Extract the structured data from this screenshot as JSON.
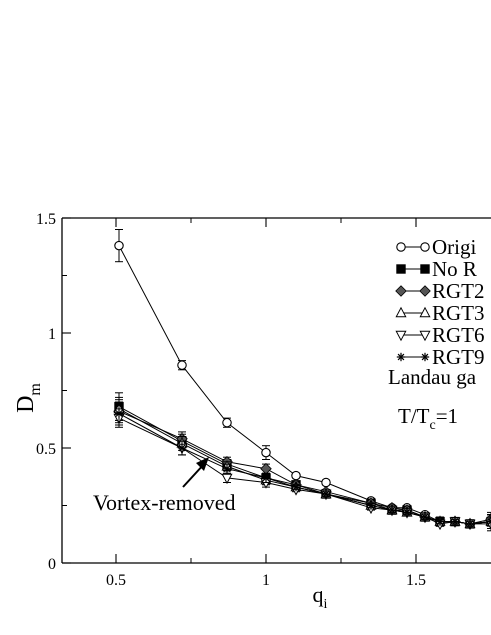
{
  "chart_data": {
    "type": "line",
    "xlabel": "q",
    "xlabel_sub": "i",
    "ylabel": "D",
    "ylabel_sub": "m",
    "xlim": [
      0.32,
      1.75
    ],
    "ylim": [
      0,
      1.5
    ],
    "xticks": [
      {
        "value": 0.5,
        "label": "0.5"
      },
      {
        "value": 1.0,
        "label": "1"
      },
      {
        "value": 1.5,
        "label": "1.5"
      }
    ],
    "yticks": [
      {
        "value": 0,
        "label": "0"
      },
      {
        "value": 0.5,
        "label": "0.5"
      },
      {
        "value": 1.0,
        "label": "1"
      },
      {
        "value": 1.5,
        "label": "1.5"
      }
    ],
    "legend_placement": "top-right",
    "series": [
      {
        "name": "Origi",
        "marker": "circle-open",
        "color": "#000000",
        "x": [
          0.51,
          0.72,
          0.87,
          1.0,
          1.1,
          1.2,
          1.35,
          1.42,
          1.47,
          1.53,
          1.58,
          1.63,
          1.68,
          1.75
        ],
        "y": [
          1.38,
          0.86,
          0.61,
          0.48,
          0.38,
          0.35,
          0.27,
          0.24,
          0.24,
          0.21,
          0.18,
          0.18,
          0.17,
          0.18
        ],
        "err": [
          0.07,
          0.02,
          0.02,
          0.03,
          0.01,
          0.01,
          0.01,
          0.01,
          0.01,
          0.01,
          0.01,
          0.01,
          0.01,
          0.03
        ]
      },
      {
        "name": "No R",
        "marker": "square-filled",
        "color": "#000000",
        "x": [
          0.51,
          0.72,
          0.87,
          1.0,
          1.1,
          1.2,
          1.35,
          1.42,
          1.47,
          1.53,
          1.58,
          1.63,
          1.68,
          1.75
        ],
        "y": [
          0.68,
          0.53,
          0.43,
          0.37,
          0.34,
          0.3,
          0.26,
          0.23,
          0.23,
          0.2,
          0.18,
          0.18,
          0.17,
          0.18
        ],
        "err": [
          0.06,
          0.03,
          0.02,
          0.02,
          0.01,
          0.01,
          0.01,
          0.01,
          0.01,
          0.01,
          0.02,
          0.01,
          0.01,
          0.03
        ]
      },
      {
        "name": "RGT2",
        "marker": "diamond-filled",
        "color": "#555555",
        "x": [
          0.51,
          0.72,
          0.87,
          1.0,
          1.1,
          1.2,
          1.35,
          1.42,
          1.47,
          1.53,
          1.58,
          1.63,
          1.68,
          1.75
        ],
        "y": [
          0.66,
          0.54,
          0.44,
          0.41,
          0.34,
          0.31,
          0.26,
          0.24,
          0.23,
          0.2,
          0.18,
          0.18,
          0.17,
          0.19
        ],
        "err": [
          0.05,
          0.03,
          0.02,
          0.02,
          0.01,
          0.01,
          0.01,
          0.01,
          0.01,
          0.01,
          0.01,
          0.01,
          0.01,
          0.03
        ]
      },
      {
        "name": "RGT3",
        "marker": "triangle-up-open",
        "color": "#000000",
        "x": [
          0.51,
          0.72,
          0.87,
          1.0,
          1.1,
          1.2,
          1.35,
          1.42,
          1.47,
          1.53,
          1.58,
          1.63,
          1.68,
          1.75
        ],
        "y": [
          0.67,
          0.52,
          0.42,
          0.36,
          0.33,
          0.3,
          0.25,
          0.23,
          0.22,
          0.2,
          0.18,
          0.18,
          0.17,
          0.18
        ],
        "err": [
          0.05,
          0.03,
          0.02,
          0.02,
          0.01,
          0.01,
          0.01,
          0.01,
          0.01,
          0.01,
          0.01,
          0.01,
          0.01,
          0.03
        ]
      },
      {
        "name": "RGT6",
        "marker": "triangle-down-open",
        "color": "#000000",
        "x": [
          0.51,
          0.72,
          0.87,
          1.0,
          1.1,
          1.2,
          1.35,
          1.42,
          1.47,
          1.53,
          1.58,
          1.63,
          1.68,
          1.75
        ],
        "y": [
          0.63,
          0.5,
          0.37,
          0.35,
          0.32,
          0.3,
          0.24,
          0.23,
          0.22,
          0.2,
          0.17,
          0.18,
          0.17,
          0.17
        ],
        "err": [
          0.04,
          0.03,
          0.02,
          0.02,
          0.01,
          0.01,
          0.01,
          0.01,
          0.01,
          0.01,
          0.01,
          0.01,
          0.01,
          0.03
        ]
      },
      {
        "name": "RGT9",
        "marker": "star",
        "color": "#000000",
        "x": [
          0.51,
          0.72,
          0.87,
          1.0,
          1.1,
          1.2,
          1.35,
          1.42,
          1.47,
          1.53,
          1.58,
          1.63,
          1.68,
          1.75
        ],
        "y": [
          0.65,
          0.5,
          0.41,
          0.37,
          0.33,
          0.3,
          0.25,
          0.23,
          0.22,
          0.2,
          0.18,
          0.18,
          0.17,
          0.18
        ],
        "err": [
          0.05,
          0.03,
          0.02,
          0.02,
          0.01,
          0.01,
          0.01,
          0.01,
          0.01,
          0.01,
          0.01,
          0.01,
          0.01,
          0.03
        ]
      }
    ],
    "annotations": {
      "vortex_label": "Vortex-removed",
      "gauge_label": "Landau ga",
      "temp_prefix": "T/T",
      "temp_sub": "c",
      "temp_suffix": "=1"
    }
  }
}
